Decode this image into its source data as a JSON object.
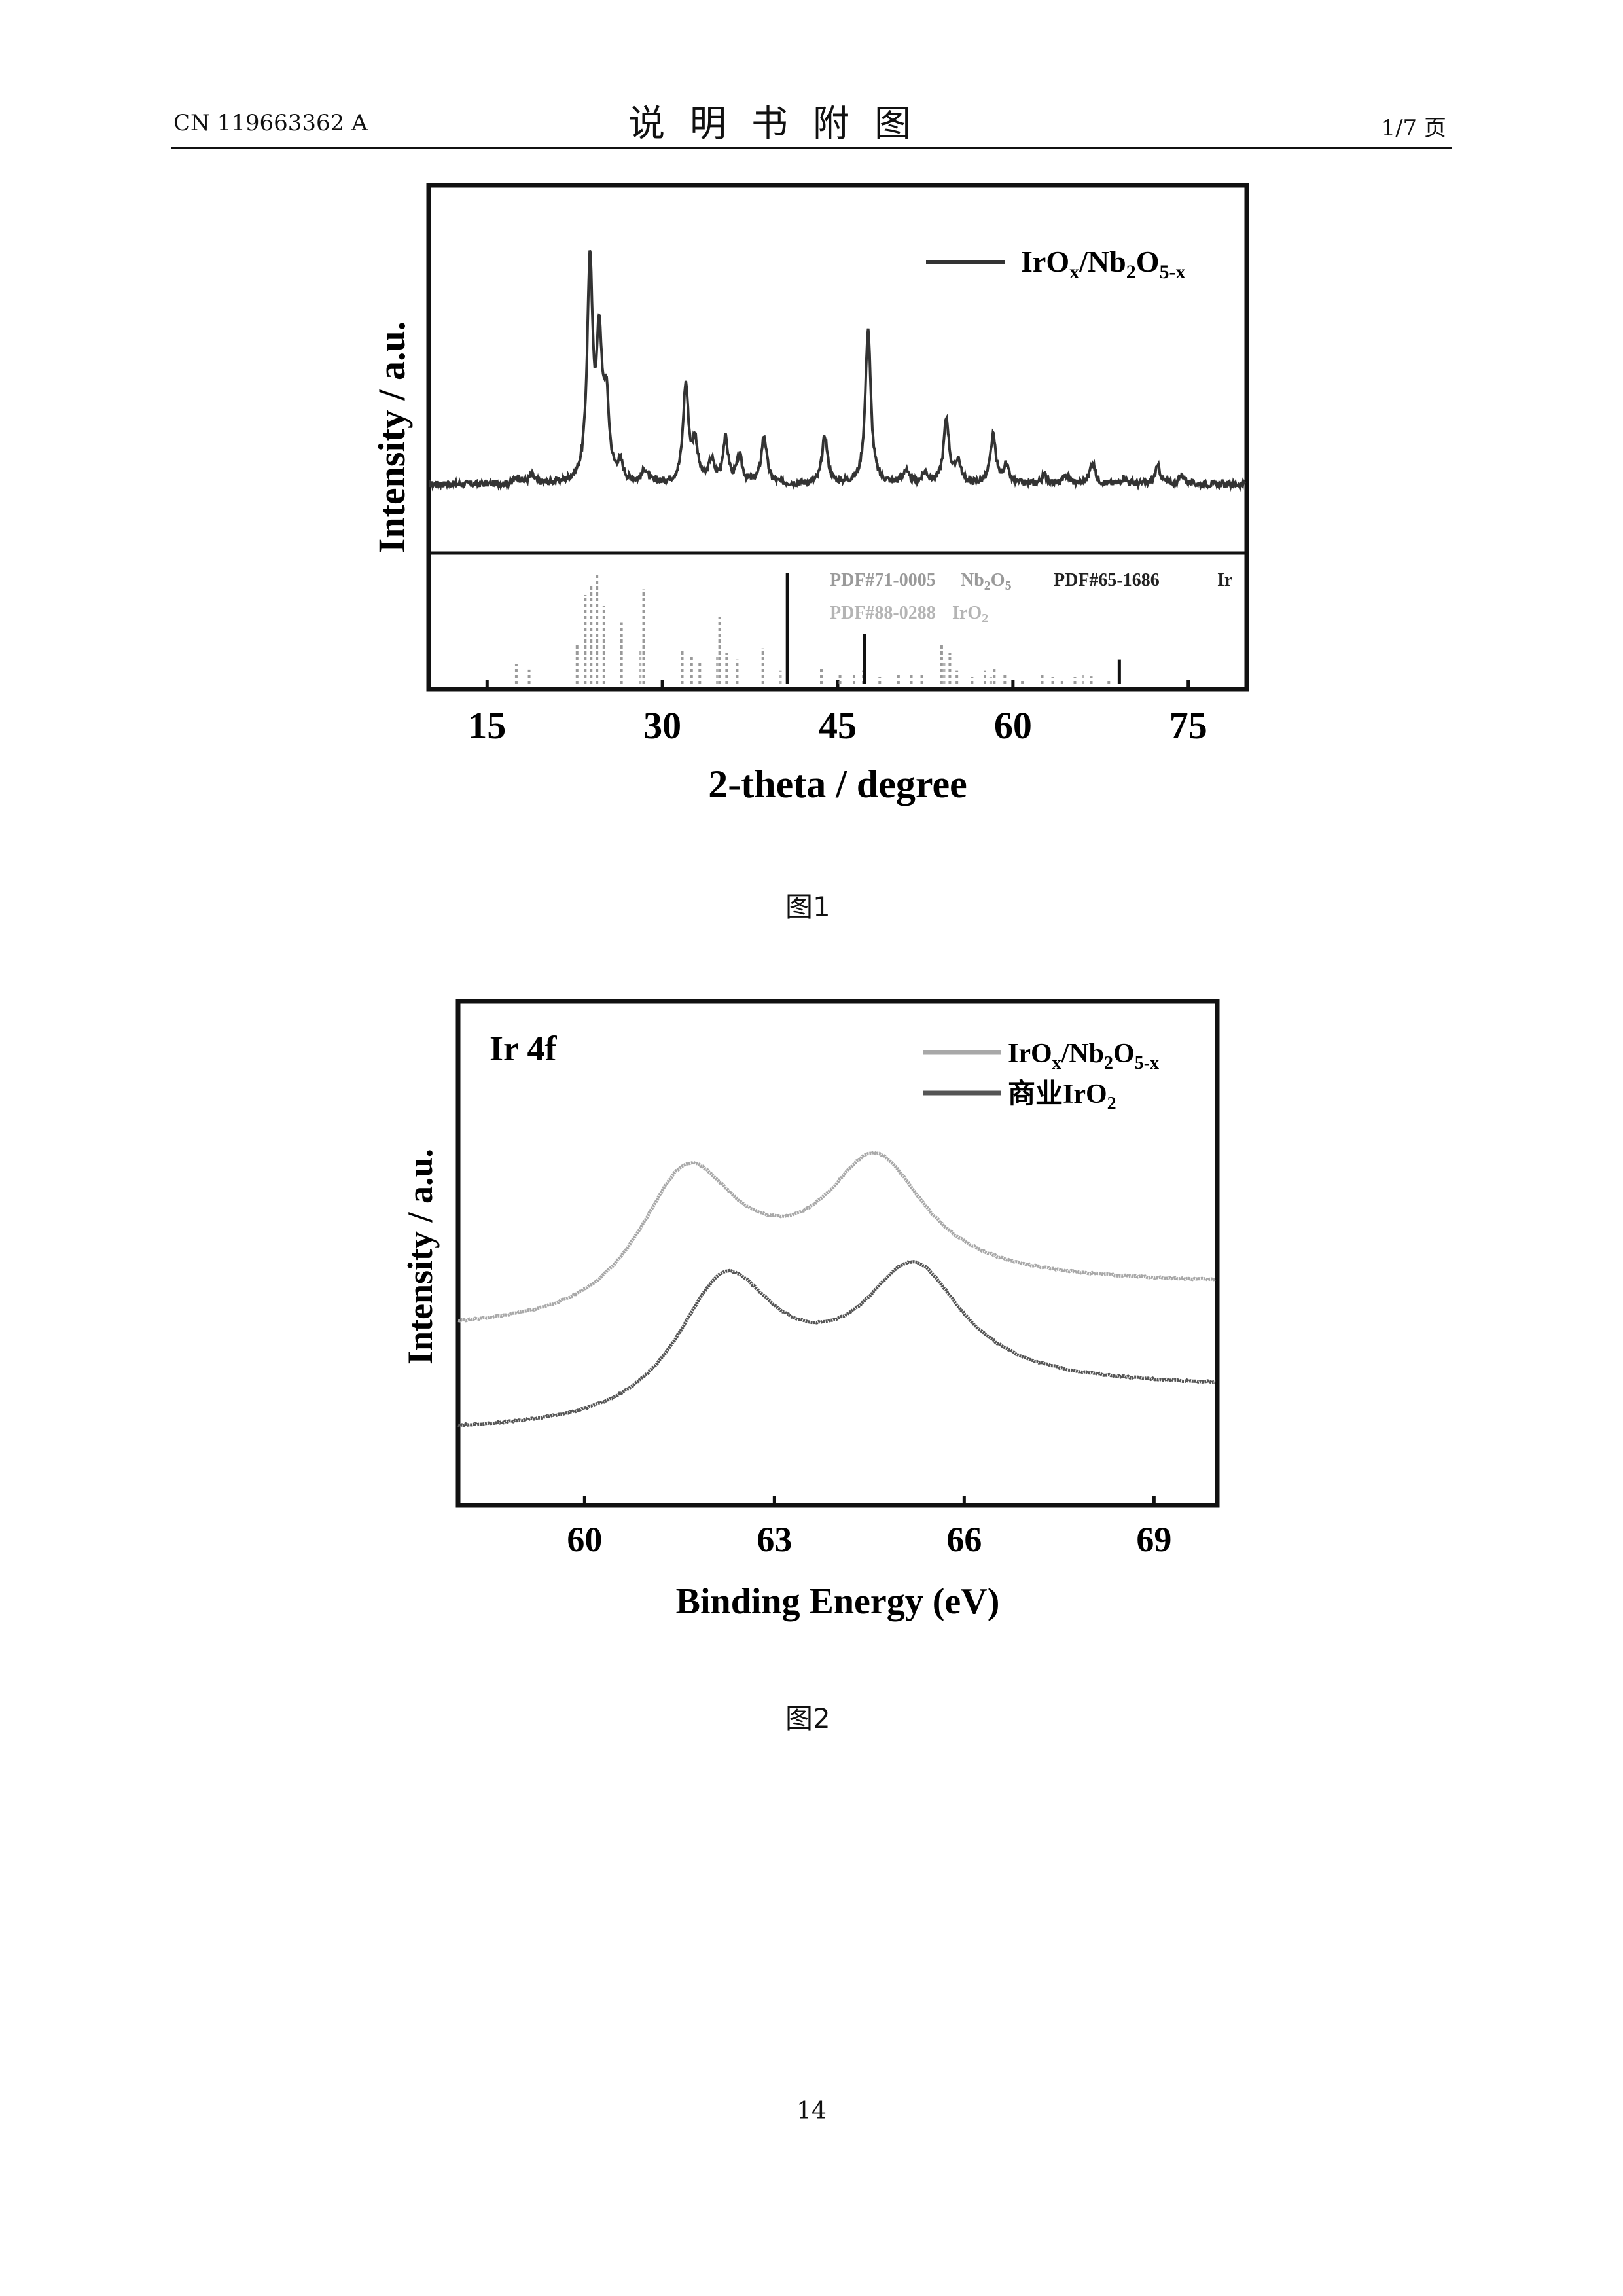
{
  "header": {
    "doc_number": "CN 119663362 A",
    "section_title": "说明书附图",
    "page_of": "1/7 页"
  },
  "figures": [
    {
      "caption": "图1"
    },
    {
      "caption": "图2"
    }
  ],
  "page_number": "14",
  "chart_data": [
    {
      "type": "line",
      "xlabel": "2-theta / degree",
      "ylabel": "Intensity / a.u.",
      "xlim": [
        10,
        80
      ],
      "xticks": [
        15,
        30,
        45,
        60,
        75
      ],
      "xtick_labels": [
        "15",
        "30",
        "45",
        "60",
        "75"
      ],
      "legend_location": "top-right",
      "series": [
        {
          "name": "IrOx/Nb2O5-x",
          "legend_main": "IrO",
          "legend_sub1": "x",
          "legend_mid": "/Nb",
          "legend_sub2": "2",
          "legend_mid2": "O",
          "legend_sub3": "5-x",
          "color": "#333333",
          "peaks": [
            {
              "x": 17.6,
              "h": 0.03
            },
            {
              "x": 18.8,
              "h": 0.04
            },
            {
              "x": 23.8,
              "h": 1.0
            },
            {
              "x": 24.6,
              "h": 0.62
            },
            {
              "x": 25.2,
              "h": 0.35
            },
            {
              "x": 26.4,
              "h": 0.08
            },
            {
              "x": 28.5,
              "h": 0.06
            },
            {
              "x": 32.0,
              "h": 0.45
            },
            {
              "x": 32.8,
              "h": 0.18
            },
            {
              "x": 34.2,
              "h": 0.1
            },
            {
              "x": 35.4,
              "h": 0.2
            },
            {
              "x": 36.6,
              "h": 0.12
            },
            {
              "x": 38.7,
              "h": 0.22
            },
            {
              "x": 43.9,
              "h": 0.22
            },
            {
              "x": 47.6,
              "h": 0.72
            },
            {
              "x": 50.8,
              "h": 0.06
            },
            {
              "x": 52.5,
              "h": 0.05
            },
            {
              "x": 54.3,
              "h": 0.3
            },
            {
              "x": 55.3,
              "h": 0.1
            },
            {
              "x": 58.3,
              "h": 0.22
            },
            {
              "x": 59.4,
              "h": 0.08
            },
            {
              "x": 62.7,
              "h": 0.04
            },
            {
              "x": 64.6,
              "h": 0.04
            },
            {
              "x": 66.8,
              "h": 0.1
            },
            {
              "x": 69.5,
              "h": 0.03
            },
            {
              "x": 72.4,
              "h": 0.08
            },
            {
              "x": 74.5,
              "h": 0.04
            }
          ]
        }
      ],
      "reference_patterns": [
        {
          "name": "PDF#71-0005 Nb2O5",
          "label_text": "PDF#71-0005",
          "label_compound": "Nb",
          "label_sub1": "2",
          "label_compound2": "O",
          "label_sub2": "5",
          "color": "#9a9a9a",
          "x": [
            17.5,
            18.6,
            22.7,
            23.4,
            23.9,
            24.4,
            25.0,
            26.5,
            28.4,
            31.7,
            32.5,
            33.2,
            34.9,
            35.5,
            36.4,
            38.6,
            43.6,
            45.2,
            46.4,
            47.2,
            48.6,
            50.2,
            51.3,
            52.2,
            53.9,
            54.6,
            55.2,
            56.5,
            57.6,
            58.4,
            59.3,
            60.8,
            62.5,
            63.4,
            64.2,
            65.3,
            66.7,
            68.2
          ],
          "h": [
            0.18,
            0.13,
            0.35,
            0.8,
            0.9,
            1.0,
            0.7,
            0.55,
            0.85,
            0.3,
            0.25,
            0.2,
            0.6,
            0.28,
            0.22,
            0.32,
            0.15,
            0.08,
            0.1,
            0.12,
            0.06,
            0.08,
            0.1,
            0.08,
            0.35,
            0.28,
            0.12,
            0.06,
            0.12,
            0.14,
            0.1,
            0.05,
            0.08,
            0.06,
            0.05,
            0.06,
            0.07,
            0.05
          ]
        },
        {
          "name": "PDF#65-1686 Ir",
          "label_text": "PDF#65-1686",
          "label_compound": "Ir",
          "color": "#111111",
          "x": [
            40.7,
            47.3,
            69.1
          ],
          "h": [
            1.0,
            0.45,
            0.22
          ]
        },
        {
          "name": "PDF#88-0288 IrO2",
          "label_text": "PDF#88-0288",
          "label_compound": "IrO",
          "label_sub1": "2",
          "color": "#b4b4b4",
          "x": [
            28.1,
            34.7,
            40.1,
            54.1,
            58.1,
            66.0
          ],
          "h": [
            0.3,
            0.25,
            0.12,
            0.2,
            0.06,
            0.08
          ]
        }
      ]
    },
    {
      "type": "line",
      "title": "Ir 4f",
      "xlabel": "Binding Energy (eV)",
      "ylabel": "Intensity / a.u.",
      "xlim": [
        58,
        70
      ],
      "xticks": [
        60,
        63,
        66,
        69
      ],
      "xtick_labels": [
        "60",
        "63",
        "66",
        "69"
      ],
      "legend_location": "top-right",
      "series": [
        {
          "name": "IrOx/Nb2O5-x",
          "legend_main": "IrO",
          "legend_sub1": "x",
          "legend_mid": "/Nb",
          "legend_sub2": "2",
          "legend_mid2": "O",
          "legend_sub3": "5-x",
          "color": "#a8a8a8",
          "peaks": [
            {
              "x": 61.6,
              "a": 1.0
            },
            {
              "x": 64.6,
              "a": 0.9
            }
          ],
          "baseline_left": 0.0,
          "baseline_right": 0.3
        },
        {
          "name": "商业IrO2",
          "legend_main": "商业IrO",
          "legend_sub1": "2",
          "color": "#555555",
          "peaks": [
            {
              "x": 62.2,
              "a": 1.0
            },
            {
              "x": 65.2,
              "a": 0.9
            }
          ],
          "baseline_left": 0.0,
          "baseline_right": 0.3
        }
      ]
    }
  ]
}
